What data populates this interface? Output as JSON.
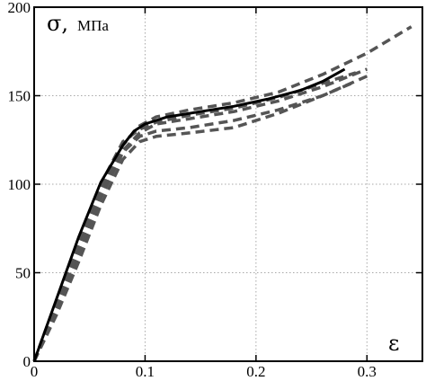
{
  "chart_data": {
    "type": "line",
    "xlabel": "ε",
    "ylabel": "σ,",
    "ylabel_unit": "МПа",
    "xlim": [
      0,
      0.35
    ],
    "ylim": [
      0,
      200
    ],
    "xticks": [
      0,
      0.1,
      0.2,
      0.3
    ],
    "xtick_labels": [
      "0",
      "0.1",
      "0.2",
      "0.3"
    ],
    "yticks": [
      0,
      50,
      100,
      150,
      200
    ],
    "ytick_labels": [
      "0",
      "50",
      "100",
      "150",
      "200"
    ],
    "grid": true,
    "legend": "none",
    "series": [
      {
        "style": "solid",
        "color": "#000000",
        "x": [
          0,
          0.02,
          0.04,
          0.06,
          0.08,
          0.09,
          0.1,
          0.12,
          0.15,
          0.18,
          0.21,
          0.24,
          0.26,
          0.28
        ],
        "y": [
          0,
          35,
          70,
          101,
          122,
          130,
          134,
          138,
          141,
          144,
          148,
          153,
          158,
          165
        ]
      },
      {
        "style": "dashed",
        "color": "#555555",
        "x": [
          0,
          0.02,
          0.04,
          0.06,
          0.08,
          0.095,
          0.11,
          0.14,
          0.18,
          0.22,
          0.26,
          0.3,
          0.34
        ],
        "y": [
          0,
          32,
          66,
          98,
          122,
          133,
          138,
          142,
          146,
          152,
          162,
          174,
          189
        ]
      },
      {
        "style": "dashed",
        "color": "#555555",
        "x": [
          0,
          0.02,
          0.04,
          0.06,
          0.08,
          0.095,
          0.11,
          0.14,
          0.18,
          0.22,
          0.26,
          0.29
        ],
        "y": [
          0,
          28,
          60,
          92,
          118,
          127,
          130,
          132,
          136,
          142,
          150,
          158
        ]
      },
      {
        "style": "dashed",
        "color": "#555555",
        "x": [
          0,
          0.02,
          0.04,
          0.06,
          0.08,
          0.095,
          0.11,
          0.14,
          0.18,
          0.22,
          0.26,
          0.3
        ],
        "y": [
          0,
          30,
          63,
          95,
          119,
          129,
          134,
          137,
          141,
          147,
          155,
          165
        ]
      },
      {
        "style": "dashed",
        "color": "#555555",
        "x": [
          0,
          0.02,
          0.04,
          0.06,
          0.08,
          0.095,
          0.11,
          0.14,
          0.18,
          0.22,
          0.26,
          0.3
        ],
        "y": [
          0,
          26,
          56,
          88,
          114,
          124,
          127,
          129,
          132,
          140,
          150,
          161
        ]
      },
      {
        "style": "dashed",
        "color": "#555555",
        "x": [
          0,
          0.02,
          0.04,
          0.06,
          0.08,
          0.095,
          0.11,
          0.14,
          0.18,
          0.22,
          0.26,
          0.29
        ],
        "y": [
          0,
          34,
          68,
          100,
          124,
          131,
          135,
          139,
          143,
          149,
          157,
          163
        ]
      }
    ]
  }
}
